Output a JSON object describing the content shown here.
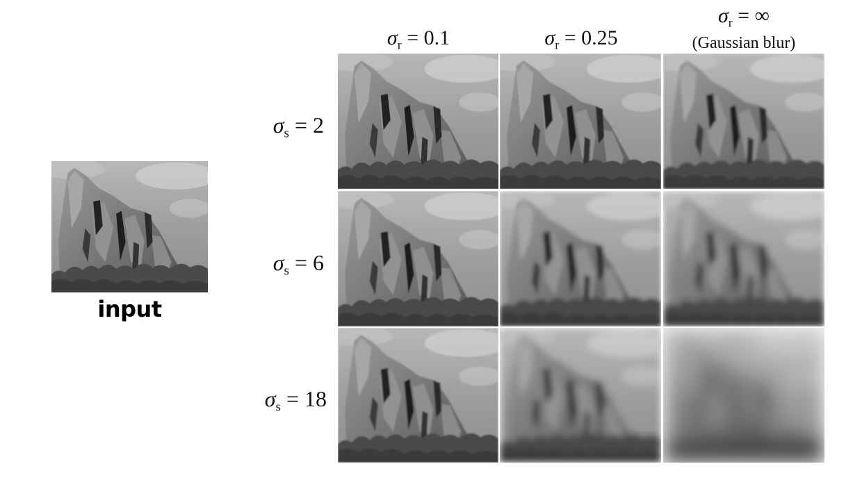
{
  "figure": {
    "input_label": "input",
    "columns": [
      {
        "symbol": "σ",
        "subscript": "r",
        "value": "= 0.1",
        "note": ""
      },
      {
        "symbol": "σ",
        "subscript": "r",
        "value": "= 0.25",
        "note": ""
      },
      {
        "symbol": "σ",
        "subscript": "r",
        "value": "= ∞",
        "note": "(Gaussian blur)"
      }
    ],
    "rows": [
      {
        "symbol": "σ",
        "subscript": "s",
        "value": "= 2"
      },
      {
        "symbol": "σ",
        "subscript": "s",
        "value": "= 6"
      },
      {
        "symbol": "σ",
        "subscript": "s",
        "value": "= 18"
      }
    ],
    "image_subject": "grayscale-rock-formation-photo"
  }
}
